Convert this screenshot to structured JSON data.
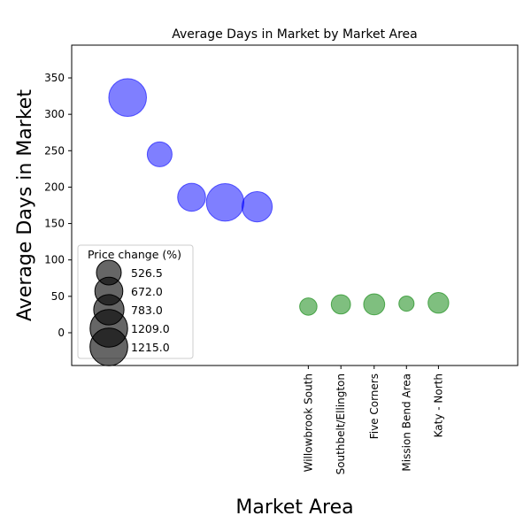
{
  "chart_data": {
    "type": "scatter",
    "title": "Average Days in Market by Market Area",
    "xlabel": "Market Area",
    "ylabel": "Average Days in Market",
    "xlim": [
      -1.75,
      12.2
    ],
    "ylim": [
      -45,
      395
    ],
    "yticks": [
      0,
      50,
      100,
      150,
      200,
      250,
      300,
      350
    ],
    "categories": [
      "Willowbrook South",
      "Southbelt/Ellington",
      "Five Corners",
      "Mission Bend Area",
      "Katy - North"
    ],
    "category_positions": [
      5.65,
      6.67,
      7.71,
      8.72,
      9.72
    ],
    "size_metric": "Price change (%)",
    "series": [
      {
        "color": "#0000ff",
        "points": [
          {
            "x": 0.0,
            "y": 323,
            "size": 1215.0
          },
          {
            "x": 1.0,
            "y": 245,
            "size": 526.5
          },
          {
            "x": 2.0,
            "y": 186,
            "size": 672.0
          },
          {
            "x": 3.05,
            "y": 179,
            "size": 1209.0
          },
          {
            "x": 4.05,
            "y": 173,
            "size": 783.0
          }
        ]
      },
      {
        "color": "#008000",
        "points": [
          {
            "x": 5.65,
            "y": 36,
            "size": 260
          },
          {
            "x": 6.67,
            "y": 39,
            "size": 320
          },
          {
            "x": 7.71,
            "y": 39,
            "size": 380
          },
          {
            "x": 8.72,
            "y": 40,
            "size": 200
          },
          {
            "x": 9.72,
            "y": 41,
            "size": 370
          }
        ]
      }
    ],
    "legend": {
      "title": "Price change (%)",
      "position": "lower-left",
      "entries": [
        {
          "label": "526.5",
          "size": 526.5
        },
        {
          "label": "672.0",
          "size": 672.0
        },
        {
          "label": "783.0",
          "size": 783.0
        },
        {
          "label": "1209.0",
          "size": 1209.0
        },
        {
          "label": "1215.0",
          "size": 1215.0
        }
      ]
    },
    "grid": false
  }
}
